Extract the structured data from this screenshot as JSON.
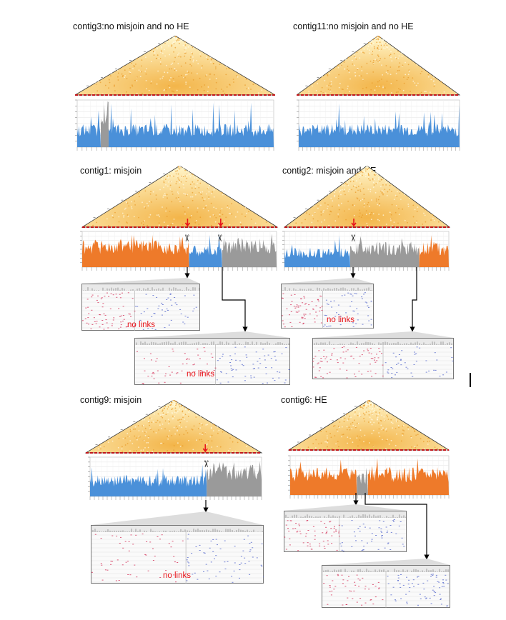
{
  "panels": [
    {
      "id": "contig3",
      "title": "contig3:no misjoin and no HE",
      "segments": [
        "blue"
      ],
      "has_gray_spike": true,
      "cuts": 0
    },
    {
      "id": "contig11",
      "title": "contig11:no misjoin and no HE",
      "segments": [
        "blue"
      ],
      "cuts": 0
    },
    {
      "id": "contig1",
      "title": "contig1: misjoin",
      "segments": [
        "orange",
        "blue",
        "gray"
      ],
      "cuts": 2,
      "no_links_label": "no links"
    },
    {
      "id": "contig2",
      "title": "contig2: misjoin and HE",
      "segments": [
        "blue",
        "gray",
        "orange"
      ],
      "cuts": 1,
      "no_links_label": "no links"
    },
    {
      "id": "contig9",
      "title": "contig9: misjoin",
      "segments": [
        "blue",
        "gray"
      ],
      "cuts": 1,
      "no_links_label": "no links"
    },
    {
      "id": "contig6",
      "title": "contig6: HE",
      "segments": [
        "orange",
        "gray",
        "orange"
      ],
      "cuts": 0
    }
  ],
  "labels": {
    "no_links_1": "no links",
    "no_links_2": "no links",
    "no_links_3": "no links",
    "no_links_4": "no links"
  },
  "colors": {
    "blue": "#4a90d9",
    "orange": "#ee7a2a",
    "gray": "#9a9a9a",
    "heatmap_light": "#fff3c4",
    "heatmap_dark": "#f3b54a",
    "marker_red": "#e8141a"
  }
}
